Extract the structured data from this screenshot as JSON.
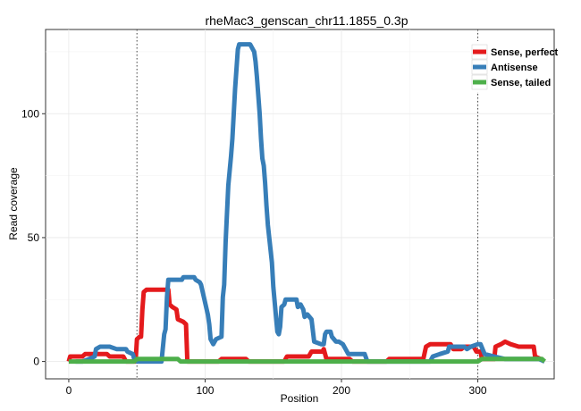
{
  "chart_data": {
    "type": "line",
    "title": "rheMac3_genscan_chr11.1855_0.3p",
    "xlabel": "Position",
    "ylabel": "Read coverage",
    "xlim": [
      -17,
      356
    ],
    "ylim": [
      -7,
      134
    ],
    "xticks": [
      0,
      100,
      200,
      300
    ],
    "yticks": [
      0,
      50,
      100
    ],
    "x_minor_ticks": [
      50,
      150,
      250
    ],
    "y_minor_ticks": [
      25,
      75,
      125
    ],
    "grid": true,
    "legend_position": "top-right",
    "vlines": [
      50,
      300
    ],
    "series": [
      {
        "name": "Sense, perfect",
        "color": "#E41A1C",
        "points": [
          [
            0,
            0
          ],
          [
            1,
            2
          ],
          [
            10,
            2
          ],
          [
            12,
            3
          ],
          [
            28,
            3
          ],
          [
            30,
            2
          ],
          [
            40,
            2
          ],
          [
            42,
            0
          ],
          [
            49,
            0
          ],
          [
            50,
            9
          ],
          [
            52,
            10
          ],
          [
            53,
            10
          ],
          [
            54,
            21
          ],
          [
            55,
            28
          ],
          [
            57,
            29
          ],
          [
            73,
            29
          ],
          [
            74,
            23
          ],
          [
            76,
            22
          ],
          [
            79,
            21
          ],
          [
            80,
            17
          ],
          [
            84,
            16
          ],
          [
            86,
            15
          ],
          [
            87,
            0
          ],
          [
            110,
            0
          ],
          [
            112,
            1
          ],
          [
            130,
            1
          ],
          [
            132,
            0
          ],
          [
            158,
            0
          ],
          [
            160,
            2
          ],
          [
            176,
            2
          ],
          [
            178,
            4
          ],
          [
            186,
            4
          ],
          [
            187,
            5
          ],
          [
            189,
            1
          ],
          [
            206,
            1
          ],
          [
            208,
            0
          ],
          [
            233,
            0
          ],
          [
            235,
            1
          ],
          [
            260,
            1
          ],
          [
            262,
            6
          ],
          [
            265,
            7
          ],
          [
            280,
            7
          ],
          [
            282,
            5
          ],
          [
            288,
            5
          ],
          [
            290,
            6
          ],
          [
            297,
            6
          ],
          [
            299,
            4
          ],
          [
            302,
            4
          ],
          [
            303,
            1
          ],
          [
            312,
            1
          ],
          [
            313,
            6
          ],
          [
            317,
            7
          ],
          [
            320,
            8
          ],
          [
            324,
            7
          ],
          [
            330,
            6
          ],
          [
            341,
            6
          ],
          [
            342,
            2
          ],
          [
            346,
            1
          ],
          [
            349,
            0
          ]
        ]
      },
      {
        "name": "Antisense",
        "color": "#377EB8",
        "points": [
          [
            5,
            0
          ],
          [
            10,
            0
          ],
          [
            15,
            1
          ],
          [
            19,
            2
          ],
          [
            20,
            5
          ],
          [
            23,
            6
          ],
          [
            30,
            6
          ],
          [
            35,
            5
          ],
          [
            42,
            5
          ],
          [
            43,
            4
          ],
          [
            47,
            3
          ],
          [
            48,
            1
          ],
          [
            50,
            0
          ],
          [
            68,
            0
          ],
          [
            70,
            11
          ],
          [
            71,
            13
          ],
          [
            72,
            26
          ],
          [
            73,
            33
          ],
          [
            74,
            33
          ],
          [
            83,
            33
          ],
          [
            84,
            34
          ],
          [
            92,
            34
          ],
          [
            93,
            33
          ],
          [
            96,
            32
          ],
          [
            97,
            31
          ],
          [
            102,
            19
          ],
          [
            103,
            15
          ],
          [
            104,
            9
          ],
          [
            106,
            7
          ],
          [
            108,
            9
          ],
          [
            112,
            10
          ],
          [
            113,
            26
          ],
          [
            114,
            31
          ],
          [
            115,
            48
          ],
          [
            117,
            71
          ],
          [
            119,
            83
          ],
          [
            120,
            90
          ],
          [
            122,
            110
          ],
          [
            124,
            126
          ],
          [
            125,
            128
          ],
          [
            133,
            128
          ],
          [
            136,
            125
          ],
          [
            137,
            121
          ],
          [
            138,
            115
          ],
          [
            140,
            100
          ],
          [
            141,
            90
          ],
          [
            142,
            82
          ],
          [
            143,
            79
          ],
          [
            144,
            72
          ],
          [
            145,
            63
          ],
          [
            146,
            55
          ],
          [
            147,
            50
          ],
          [
            148,
            45
          ],
          [
            149,
            40
          ],
          [
            150,
            30
          ],
          [
            151,
            24
          ],
          [
            152,
            18
          ],
          [
            153,
            12
          ],
          [
            154,
            11
          ],
          [
            155,
            14
          ],
          [
            156,
            22
          ],
          [
            158,
            23
          ],
          [
            159,
            25
          ],
          [
            167,
            25
          ],
          [
            168,
            22
          ],
          [
            170,
            23
          ],
          [
            172,
            21
          ],
          [
            173,
            18
          ],
          [
            175,
            19
          ],
          [
            178,
            17
          ],
          [
            180,
            8
          ],
          [
            185,
            7
          ],
          [
            187,
            7
          ],
          [
            188,
            11
          ],
          [
            189,
            12
          ],
          [
            192,
            12
          ],
          [
            193,
            10
          ],
          [
            196,
            8
          ],
          [
            198,
            8
          ],
          [
            201,
            7
          ],
          [
            205,
            3
          ],
          [
            217,
            3
          ],
          [
            219,
            0
          ],
          [
            265,
            0
          ],
          [
            267,
            2
          ],
          [
            272,
            3
          ],
          [
            278,
            4
          ],
          [
            279,
            6
          ],
          [
            285,
            6
          ],
          [
            290,
            6
          ],
          [
            292,
            5
          ],
          [
            295,
            6
          ],
          [
            300,
            7
          ],
          [
            302,
            7
          ],
          [
            305,
            3
          ],
          [
            312,
            2
          ],
          [
            320,
            1
          ],
          [
            345,
            1
          ],
          [
            349,
            0
          ]
        ]
      },
      {
        "name": "Sense, tailed",
        "color": "#4DAF4A",
        "points": [
          [
            0,
            0
          ],
          [
            48,
            0
          ],
          [
            50,
            1
          ],
          [
            80,
            1
          ],
          [
            82,
            0
          ],
          [
            300,
            0
          ],
          [
            303,
            1
          ],
          [
            347,
            1
          ],
          [
            349,
            0
          ]
        ]
      }
    ]
  }
}
